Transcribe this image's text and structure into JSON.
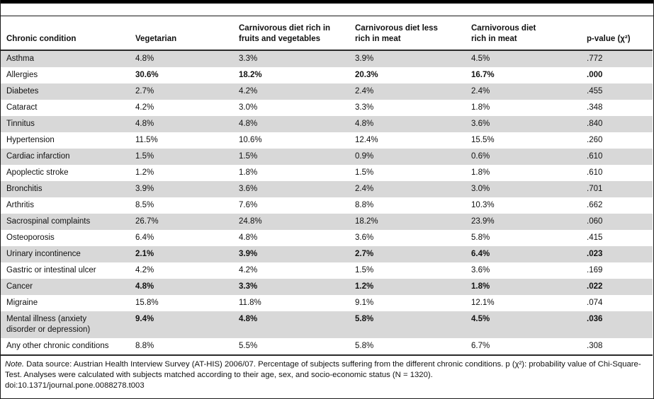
{
  "table": {
    "columns": [
      {
        "label": "Chronic condition"
      },
      {
        "label": "Vegetarian"
      },
      {
        "label": "Carnivorous diet rich in\nfruits and vegetables"
      },
      {
        "label": "Carnivorous diet less\nrich in meat"
      },
      {
        "label": "Carnivorous diet\nrich in meat"
      },
      {
        "label": "p-value (χ²)"
      }
    ],
    "rows": [
      {
        "condition": "Asthma",
        "values": [
          "4.8%",
          "3.3%",
          "3.9%",
          "4.5%"
        ],
        "p": ".772",
        "bold": false
      },
      {
        "condition": "Allergies",
        "values": [
          "30.6%",
          "18.2%",
          "20.3%",
          "16.7%"
        ],
        "p": ".000",
        "bold": true
      },
      {
        "condition": "Diabetes",
        "values": [
          "2.7%",
          "4.2%",
          "2.4%",
          "2.4%"
        ],
        "p": ".455",
        "bold": false
      },
      {
        "condition": "Cataract",
        "values": [
          "4.2%",
          "3.0%",
          "3.3%",
          "1.8%"
        ],
        "p": ".348",
        "bold": false
      },
      {
        "condition": "Tinnitus",
        "values": [
          "4.8%",
          "4.8%",
          "4.8%",
          "3.6%"
        ],
        "p": ".840",
        "bold": false
      },
      {
        "condition": "Hypertension",
        "values": [
          "11.5%",
          "10.6%",
          "12.4%",
          "15.5%"
        ],
        "p": ".260",
        "bold": false
      },
      {
        "condition": "Cardiac infarction",
        "values": [
          "1.5%",
          "1.5%",
          "0.9%",
          "0.6%"
        ],
        "p": ".610",
        "bold": false
      },
      {
        "condition": "Apoplectic stroke",
        "values": [
          "1.2%",
          "1.8%",
          "1.5%",
          "1.8%"
        ],
        "p": ".610",
        "bold": false
      },
      {
        "condition": "Bronchitis",
        "values": [
          "3.9%",
          "3.6%",
          "2.4%",
          "3.0%"
        ],
        "p": ".701",
        "bold": false
      },
      {
        "condition": "Arthritis",
        "values": [
          "8.5%",
          "7.6%",
          "8.8%",
          "10.3%"
        ],
        "p": ".662",
        "bold": false
      },
      {
        "condition": "Sacrospinal complaints",
        "values": [
          "26.7%",
          "24.8%",
          "18.2%",
          "23.9%"
        ],
        "p": ".060",
        "bold": false
      },
      {
        "condition": "Osteoporosis",
        "values": [
          "6.4%",
          "4.8%",
          "3.6%",
          "5.8%"
        ],
        "p": ".415",
        "bold": false
      },
      {
        "condition": "Urinary incontinence",
        "values": [
          "2.1%",
          "3.9%",
          "2.7%",
          "6.4%"
        ],
        "p": ".023",
        "bold": true
      },
      {
        "condition": "Gastric or intestinal ulcer",
        "values": [
          "4.2%",
          "4.2%",
          "1.5%",
          "3.6%"
        ],
        "p": ".169",
        "bold": false
      },
      {
        "condition": "Cancer",
        "values": [
          "4.8%",
          "3.3%",
          "1.2%",
          "1.8%"
        ],
        "p": ".022",
        "bold": true
      },
      {
        "condition": "Migraine",
        "values": [
          "15.8%",
          "11.8%",
          "9.1%",
          "12.1%"
        ],
        "p": ".074",
        "bold": false
      },
      {
        "condition": "Mental illness (anxiety\ndisorder or depression)",
        "values": [
          "9.4%",
          "4.8%",
          "5.8%",
          "4.5%"
        ],
        "p": ".036",
        "bold": true
      },
      {
        "condition": "Any other chronic conditions",
        "values": [
          "8.8%",
          "5.5%",
          "5.8%",
          "6.7%"
        ],
        "p": ".308",
        "bold": false
      }
    ]
  },
  "footer": {
    "note_label": "Note.",
    "note_text": " Data source: Austrian Health Interview Survey (AT-HIS) 2006/07. Percentage of subjects suffering from the different chronic conditions. p (χ²): probability value of Chi-Square-Test. Analyses were calculated with subjects matched according to their age, sex, and socio-economic status (N = 1320).",
    "doi": "doi:10.1371/journal.pone.0088278.t003"
  },
  "colors": {
    "stripe": "#d8d8d8",
    "rule": "#2a2a2a",
    "text": "#111111"
  }
}
